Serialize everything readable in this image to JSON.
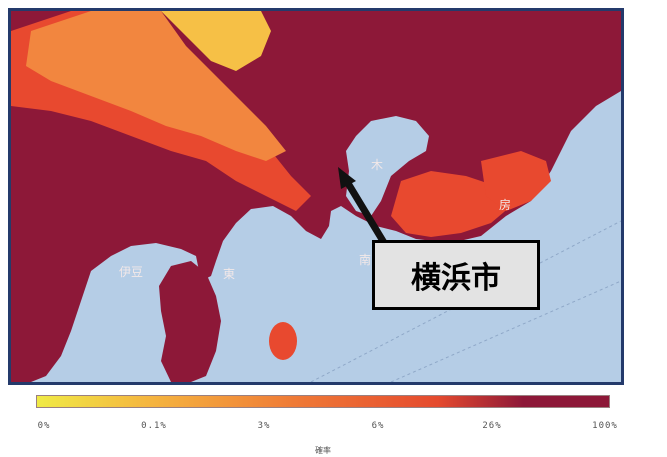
{
  "callout": {
    "label": "横浜市"
  },
  "map": {
    "place_labels": [
      "伊豆",
      "東",
      "南",
      "木",
      "房"
    ],
    "colors": {
      "sea": "#b5cde6",
      "very_high": "#8d1838",
      "high": "#e8492f",
      "mid": "#f2863f",
      "low": "#f6c046",
      "pointer": "#111111",
      "frame": "#243a6b"
    }
  },
  "legend": {
    "ticks": [
      "0%",
      "0.1%",
      "3%",
      "6%",
      "26%",
      "100%"
    ],
    "title": "確率",
    "gradient": [
      "#f0ea45",
      "#f5b43f",
      "#ef7a36",
      "#e54a2e",
      "#8d1838"
    ]
  }
}
